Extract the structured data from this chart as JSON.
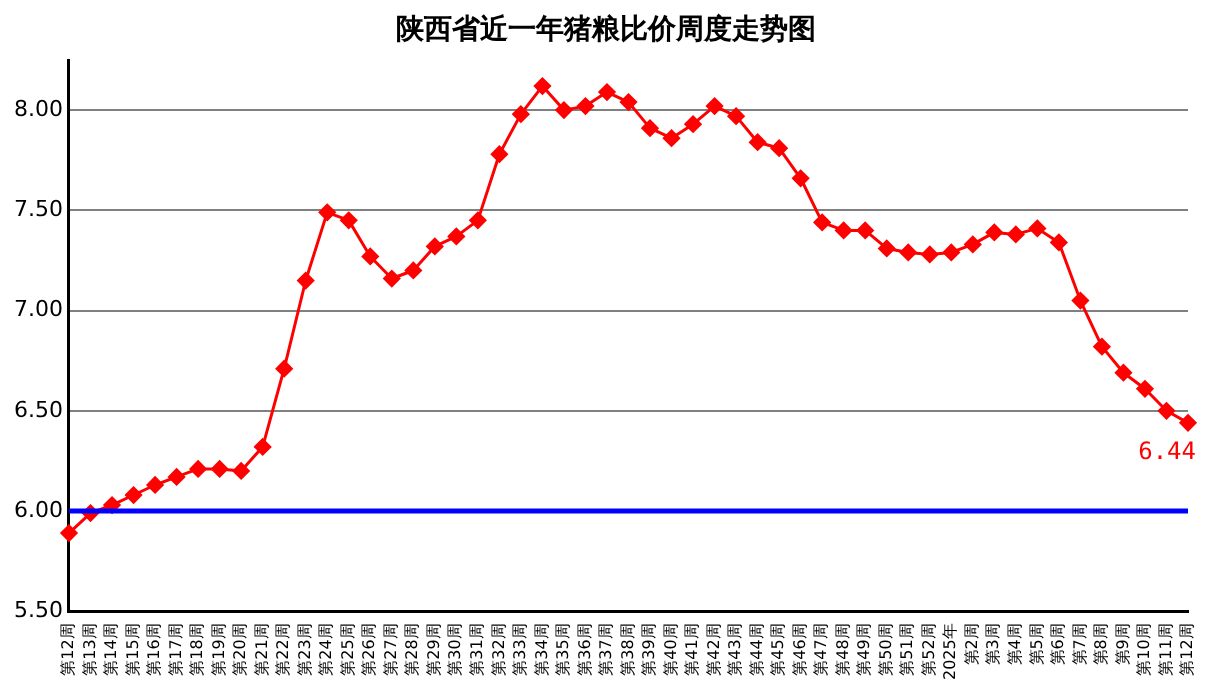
{
  "chart_data": {
    "type": "line",
    "title": "陕西省近一年猪粮比价周度走势图",
    "categories": [
      "第12周",
      "第13周",
      "第14周",
      "第15周",
      "第16周",
      "第17周",
      "第18周",
      "第19周",
      "第20周",
      "第21周",
      "第22周",
      "第23周",
      "第24周",
      "第25周",
      "第26周",
      "第27周",
      "第28周",
      "第29周",
      "第30周",
      "第31周",
      "第32周",
      "第33周",
      "第34周",
      "第35周",
      "第36周",
      "第37周",
      "第38周",
      "第39周",
      "第40周",
      "第41周",
      "第42周",
      "第43周",
      "第44周",
      "第45周",
      "第46周",
      "第47周",
      "第48周",
      "第49周",
      "第50周",
      "第51周",
      "第52周",
      "2025年",
      "第2周",
      "第3周",
      "第4周",
      "第5周",
      "第6周",
      "第7周",
      "第8周",
      "第9周",
      "第10周",
      "第11周",
      "第12周"
    ],
    "series": [
      {
        "color": "#ff0000",
        "values": [
          5.89,
          5.99,
          6.03,
          6.08,
          6.13,
          6.17,
          6.21,
          6.21,
          6.2,
          6.32,
          6.71,
          7.15,
          7.49,
          7.45,
          7.27,
          7.16,
          7.2,
          7.32,
          7.37,
          7.45,
          7.78,
          7.98,
          8.12,
          8.0,
          8.02,
          8.09,
          8.04,
          7.91,
          7.86,
          7.93,
          8.02,
          7.97,
          7.84,
          7.81,
          7.66,
          7.44,
          7.4,
          7.4,
          7.31,
          7.29,
          7.28,
          7.29,
          7.33,
          7.39,
          7.38,
          7.41,
          7.34,
          7.05,
          6.82,
          6.69,
          6.61,
          6.5,
          6.44
        ],
        "value_labels": [
          null,
          null,
          null,
          null,
          null,
          null,
          null,
          null,
          null,
          null,
          null,
          null,
          null,
          null,
          null,
          null,
          null,
          null,
          null,
          null,
          null,
          null,
          null,
          null,
          null,
          null,
          null,
          null,
          null,
          null,
          null,
          null,
          null,
          null,
          null,
          null,
          null,
          null,
          null,
          null,
          null,
          null,
          null,
          null,
          null,
          null,
          null,
          null,
          null,
          null,
          null,
          null,
          "6.44"
        ]
      }
    ],
    "ylim": [
      5.5,
      8.25
    ],
    "yticks": [
      {
        "value": 5.5,
        "label": "5.50"
      },
      {
        "value": 6,
        "label": "6.00"
      },
      {
        "value": 6.5,
        "label": "6.50"
      },
      {
        "value": 7,
        "label": "7.00"
      },
      {
        "value": 7.5,
        "label": "7.50"
      },
      {
        "value": 8,
        "label": "8.00"
      }
    ],
    "ref_lines": [
      {
        "axis": "y",
        "value": 6,
        "color": "#0000ff"
      }
    ],
    "grid": "y",
    "marker": "diamond",
    "line_style": "solid",
    "legend": false
  }
}
